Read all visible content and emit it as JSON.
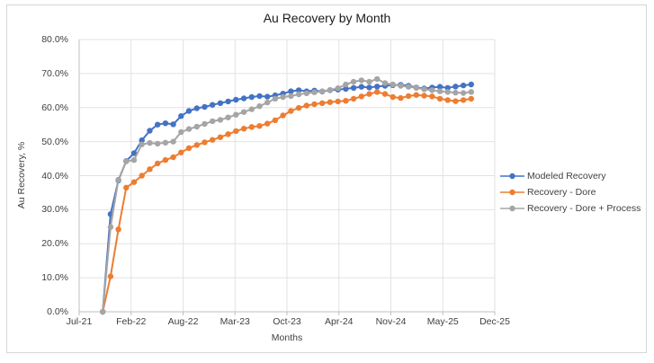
{
  "window": {
    "background": "#ffffff",
    "border_color": "#d6d6d6"
  },
  "chart_data": {
    "type": "line",
    "title": "Au Recovery by Month",
    "xlabel": "Months",
    "ylabel": "Au Recovery, %",
    "ylim": [
      0,
      80
    ],
    "grid": true,
    "legend_position": "right",
    "y_tick_labels": [
      "0.0%",
      "10.0%",
      "20.0%",
      "30.0%",
      "40.0%",
      "50.0%",
      "60.0%",
      "70.0%",
      "80.0%"
    ],
    "x_tick_labels": [
      "Jul-21",
      "Feb-22",
      "Aug-22",
      "Mar-23",
      "Oct-23",
      "Apr-24",
      "Nov-24",
      "May-25",
      "Dec-25"
    ],
    "x_axis_span_months": 53,
    "data_start_month_offset": 3,
    "months": [
      "Oct-21",
      "Nov-21",
      "Dec-21",
      "Jan-22",
      "Feb-22",
      "Mar-22",
      "Apr-22",
      "May-22",
      "Jun-22",
      "Jul-22",
      "Aug-22",
      "Sep-22",
      "Oct-22",
      "Nov-22",
      "Dec-22",
      "Jan-23",
      "Feb-23",
      "Mar-23",
      "Apr-23",
      "May-23",
      "Jun-23",
      "Jul-23",
      "Aug-23",
      "Sep-23",
      "Oct-23",
      "Nov-23",
      "Dec-23",
      "Jan-24",
      "Feb-24",
      "Mar-24",
      "Apr-24",
      "May-24",
      "Jun-24",
      "Jul-24",
      "Aug-24",
      "Sep-24",
      "Oct-24",
      "Nov-24",
      "Dec-24",
      "Jan-25",
      "Feb-25",
      "Mar-25",
      "Apr-25",
      "May-25",
      "Jun-25",
      "Jul-25",
      "Aug-25",
      "Sep-25"
    ],
    "series": [
      {
        "name": "Modeled Recovery",
        "color": "#4472C4",
        "values": [
          0.0,
          28.7,
          38.6,
          44.3,
          46.6,
          50.4,
          53.2,
          55.0,
          55.4,
          55.1,
          57.5,
          59.0,
          59.8,
          60.2,
          60.8,
          61.3,
          61.8,
          62.3,
          62.7,
          63.1,
          63.4,
          63.2,
          63.6,
          64.1,
          64.8,
          65.1,
          64.8,
          65.0,
          64.7,
          65.1,
          65.3,
          65.5,
          65.8,
          66.1,
          65.9,
          66.2,
          66.4,
          66.6,
          66.7,
          66.4,
          65.9,
          65.6,
          65.9,
          66.1,
          65.8,
          66.2,
          66.5,
          66.8
        ]
      },
      {
        "name": "Recovery - Dore",
        "color": "#ED7D31",
        "values": [
          0.0,
          10.4,
          24.2,
          36.5,
          38.1,
          40.0,
          41.9,
          43.6,
          44.6,
          45.4,
          46.8,
          48.1,
          49.0,
          49.8,
          50.5,
          51.3,
          52.2,
          53.1,
          53.8,
          54.3,
          54.6,
          55.3,
          56.3,
          57.7,
          59.0,
          59.9,
          60.6,
          61.0,
          61.3,
          61.6,
          61.8,
          62.0,
          62.6,
          63.3,
          64.0,
          64.6,
          64.0,
          63.1,
          62.8,
          63.4,
          63.7,
          63.5,
          63.3,
          62.6,
          62.2,
          61.9,
          62.2,
          62.6
        ]
      },
      {
        "name": "Recovery - Dore + Process",
        "color": "#A5A5A5",
        "values": [
          0.0,
          24.9,
          38.8,
          44.2,
          44.6,
          49.2,
          49.6,
          49.4,
          49.7,
          50.0,
          52.8,
          53.7,
          54.4,
          55.2,
          56.0,
          56.4,
          57.1,
          57.9,
          58.7,
          59.5,
          60.4,
          61.5,
          62.6,
          63.1,
          63.4,
          63.9,
          64.2,
          64.5,
          64.8,
          65.2,
          65.7,
          66.8,
          67.6,
          68.0,
          67.6,
          68.4,
          67.2,
          66.8,
          66.4,
          66.1,
          65.8,
          65.4,
          65.1,
          64.8,
          64.6,
          64.4,
          64.3,
          64.6
        ]
      }
    ],
    "style": {
      "gridline_color": "#e2e2e2",
      "axis_color": "#bfbfbf",
      "tick_label_color": "#404040",
      "title_color": "#1a1a1a"
    }
  }
}
